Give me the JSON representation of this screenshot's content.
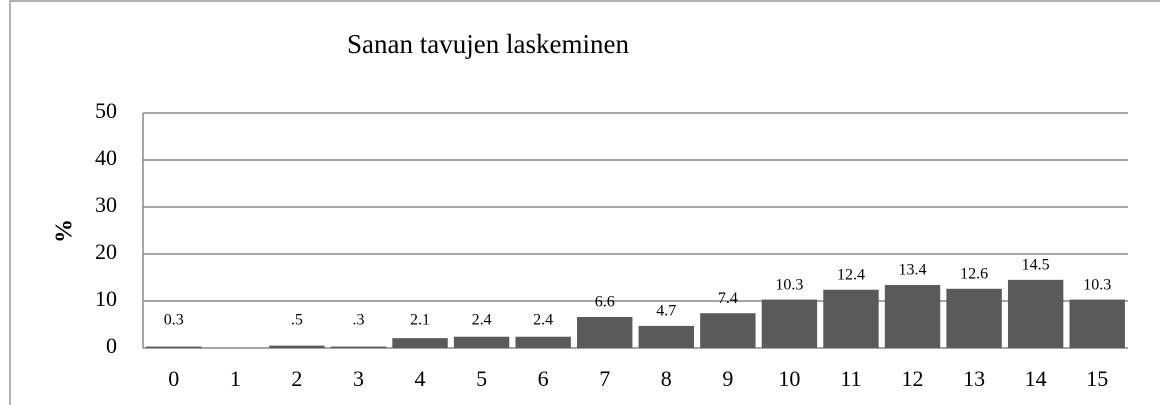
{
  "chart_data": {
    "type": "bar",
    "title": "Sanan tavujen laskeminen",
    "y_label": "%",
    "categories": [
      "0",
      "1",
      "2",
      "3",
      "4",
      "5",
      "6",
      "7",
      "8",
      "9",
      "10",
      "11",
      "12",
      "13",
      "14",
      "15"
    ],
    "values": [
      0.3,
      0,
      0.5,
      0.3,
      2.1,
      2.4,
      2.4,
      6.6,
      4.7,
      7.4,
      10.3,
      12.4,
      13.4,
      12.6,
      14.5,
      10.3
    ],
    "value_labels": [
      "0.3",
      null,
      ".5",
      ".3",
      "2.1",
      "2.4",
      "2.4",
      "6.6",
      "4.7",
      "7.4",
      "10.3",
      "12.4",
      "13.4",
      "12.6",
      "14.5",
      "10.3"
    ],
    "color": "#5a5a5a",
    "ylim": [
      0,
      50
    ],
    "yticks": [
      0,
      10,
      20,
      30,
      40,
      50
    ],
    "grid": true
  }
}
